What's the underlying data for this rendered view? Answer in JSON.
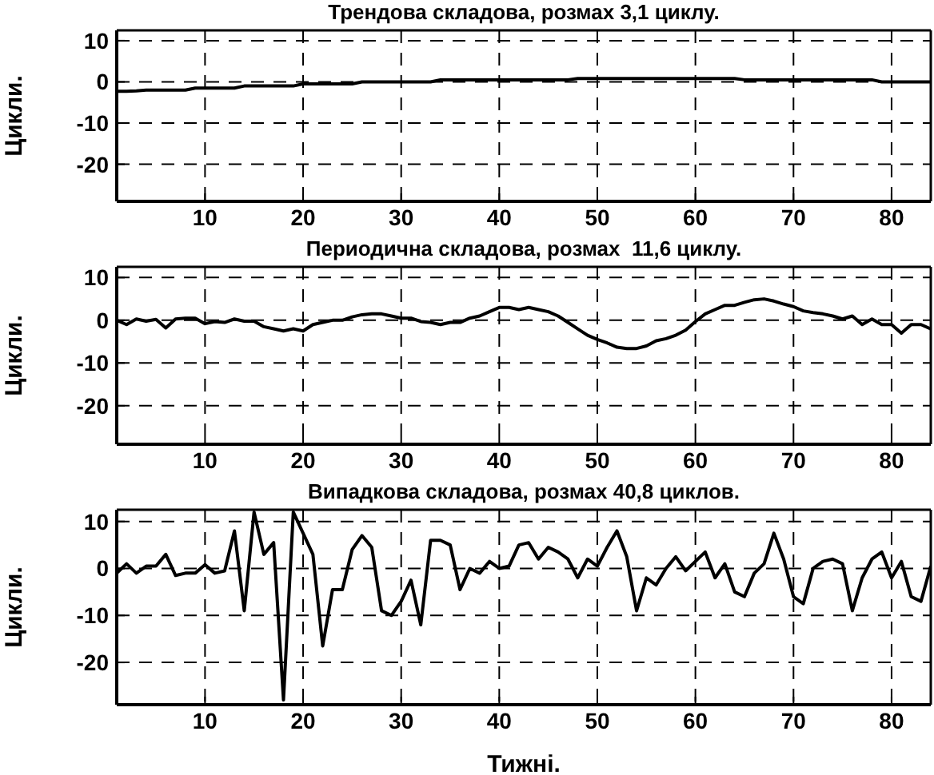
{
  "chart_data": [
    {
      "type": "line",
      "title": "Трендова складова, розмах 3,1 циклу.",
      "ylabel": "Цикли.",
      "x": [
        1,
        2,
        3,
        4,
        5,
        6,
        7,
        8,
        9,
        10,
        11,
        12,
        13,
        14,
        15,
        16,
        17,
        18,
        19,
        20,
        21,
        22,
        23,
        24,
        25,
        26,
        27,
        28,
        29,
        30,
        31,
        32,
        33,
        34,
        35,
        36,
        37,
        38,
        39,
        40,
        41,
        42,
        43,
        44,
        45,
        46,
        47,
        48,
        49,
        50,
        51,
        52,
        53,
        54,
        55,
        56,
        57,
        58,
        59,
        60,
        61,
        62,
        63,
        64,
        65,
        66,
        67,
        68,
        69,
        70,
        71,
        72,
        73,
        74,
        75,
        76,
        77,
        78,
        79,
        80,
        81,
        82,
        83,
        84
      ],
      "series": [
        {
          "color": "#000000",
          "values": [
            -2.3,
            -2.3,
            -2.2,
            -2,
            -2,
            -2,
            -2,
            -2,
            -1.5,
            -1.5,
            -1.5,
            -1.5,
            -1.5,
            -1,
            -1,
            -1,
            -1,
            -1,
            -1,
            -0.5,
            -0.5,
            -0.5,
            -0.5,
            -0.5,
            -0.5,
            0,
            0,
            0,
            0,
            0,
            0,
            0,
            0,
            0.5,
            0.5,
            0.5,
            0.5,
            0.5,
            0.5,
            0.5,
            0.5,
            0.5,
            0.5,
            0.5,
            0.5,
            0.5,
            0.5,
            0.8,
            0.8,
            0.8,
            0.8,
            0.8,
            0.8,
            0.8,
            0.8,
            0.8,
            0.8,
            0.8,
            0.8,
            0.8,
            0.8,
            0.8,
            0.8,
            0.8,
            0.5,
            0.5,
            0.5,
            0.5,
            0.5,
            0.5,
            0.5,
            0.5,
            0.5,
            0.5,
            0.5,
            0.5,
            0.5,
            0.5,
            0,
            0,
            0,
            0,
            0,
            0
          ]
        }
      ],
      "xlim": [
        1,
        84
      ],
      "ylim": [
        -29,
        12.5
      ],
      "xticks": [
        10,
        20,
        30,
        40,
        50,
        60,
        70,
        80
      ],
      "yticks": [
        -20,
        -10,
        0,
        10
      ],
      "grid": true
    },
    {
      "type": "line",
      "title": "Периодична складова, розмах  11,6 циклу.",
      "ylabel": "Цикли.",
      "x": [
        1,
        2,
        3,
        4,
        5,
        6,
        7,
        8,
        9,
        10,
        11,
        12,
        13,
        14,
        15,
        16,
        17,
        18,
        19,
        20,
        21,
        22,
        23,
        24,
        25,
        26,
        27,
        28,
        29,
        30,
        31,
        32,
        33,
        34,
        35,
        36,
        37,
        38,
        39,
        40,
        41,
        42,
        43,
        44,
        45,
        46,
        47,
        48,
        49,
        50,
        51,
        52,
        53,
        54,
        55,
        56,
        57,
        58,
        59,
        60,
        61,
        62,
        63,
        64,
        65,
        66,
        67,
        68,
        69,
        70,
        71,
        72,
        73,
        74,
        75,
        76,
        77,
        78,
        79,
        80,
        81,
        82,
        83,
        84
      ],
      "series": [
        {
          "color": "#000000",
          "values": [
            0,
            -1,
            0.3,
            -0.2,
            0.2,
            -1.8,
            0.3,
            0.5,
            0.5,
            -0.8,
            -0.3,
            -0.5,
            0.3,
            -0.2,
            -0.2,
            -1.5,
            -2,
            -2.5,
            -2,
            -2.5,
            -1,
            -0.5,
            0,
            0,
            0.8,
            1.3,
            1.5,
            1.5,
            1,
            0.5,
            0.5,
            -0.3,
            -0.5,
            -1,
            -0.5,
            -0.5,
            0.5,
            1,
            2,
            3,
            3,
            2.5,
            3,
            2.5,
            2,
            1,
            -0.5,
            -2,
            -3.5,
            -4.5,
            -5.3,
            -6.3,
            -6.6,
            -6.6,
            -6,
            -4.8,
            -4.3,
            -3.5,
            -2.3,
            -0.3,
            1.5,
            2.5,
            3.5,
            3.5,
            4.2,
            4.8,
            5,
            4.5,
            3.8,
            3.2,
            2.2,
            1.8,
            1.5,
            1,
            0.3,
            1,
            -1,
            0.3,
            -1,
            -1,
            -3,
            -1,
            -1,
            -2
          ]
        }
      ],
      "xlim": [
        1,
        84
      ],
      "ylim": [
        -29,
        12.5
      ],
      "xticks": [
        10,
        20,
        30,
        40,
        50,
        60,
        70,
        80
      ],
      "yticks": [
        -20,
        -10,
        0,
        10
      ],
      "grid": true
    },
    {
      "type": "line",
      "title": "Випадкова складова, розмах 40,8 циклов.",
      "ylabel": "Цикли.",
      "xlabel": "Тижні.",
      "x": [
        1,
        2,
        3,
        4,
        5,
        6,
        7,
        8,
        9,
        10,
        11,
        12,
        13,
        14,
        15,
        16,
        17,
        18,
        19,
        20,
        21,
        22,
        23,
        24,
        25,
        26,
        27,
        28,
        29,
        30,
        31,
        32,
        33,
        34,
        35,
        36,
        37,
        38,
        39,
        40,
        41,
        42,
        43,
        44,
        45,
        46,
        47,
        48,
        49,
        50,
        51,
        52,
        53,
        54,
        55,
        56,
        57,
        58,
        59,
        60,
        61,
        62,
        63,
        64,
        65,
        66,
        67,
        68,
        69,
        70,
        71,
        72,
        73,
        74,
        75,
        76,
        77,
        78,
        79,
        80,
        81,
        82,
        83,
        84
      ],
      "series": [
        {
          "color": "#000000",
          "values": [
            -1,
            1,
            -1,
            0.5,
            0.5,
            3,
            -1.5,
            -1,
            -1,
            0.8,
            -1,
            -0.5,
            8,
            -9,
            12,
            3,
            5.5,
            -28,
            12,
            7.5,
            3,
            -16.5,
            -4.5,
            -4.5,
            4,
            7,
            4.5,
            -9,
            -10,
            -7,
            -2.5,
            -12,
            6,
            6,
            5,
            -4.5,
            0,
            -1,
            1.5,
            0,
            0.5,
            5,
            5.5,
            2,
            4.5,
            3.5,
            2,
            -2,
            2,
            0.5,
            4.5,
            8,
            2.5,
            -9,
            -2,
            -3.5,
            0,
            2.5,
            -0.5,
            1.5,
            3.5,
            -2,
            1,
            -5,
            -6,
            -1,
            1,
            7.5,
            2,
            -6,
            -7.5,
            0,
            1.5,
            2,
            1,
            -9,
            -2,
            2,
            3.5,
            -2,
            1.5,
            -6,
            -7,
            0.5
          ]
        }
      ],
      "xlim": [
        1,
        84
      ],
      "ylim": [
        -29,
        12.5
      ],
      "xticks": [
        10,
        20,
        30,
        40,
        50,
        60,
        70,
        80
      ],
      "yticks": [
        -20,
        -10,
        0,
        10
      ],
      "grid": true
    }
  ]
}
